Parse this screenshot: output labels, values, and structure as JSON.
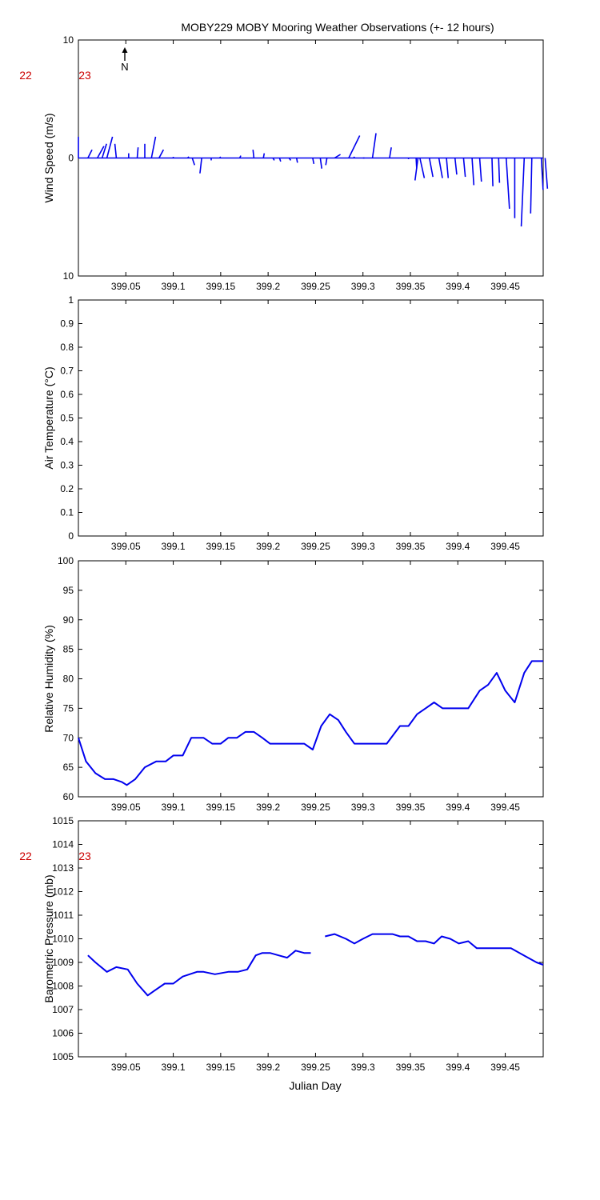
{
  "title": "MOBY229 MOBY Mooring Weather Observations (+- 12 hours)",
  "colors": {
    "series": "#0000ee",
    "day_marker": "#cc0000",
    "axes": "#000000"
  },
  "shared_x": {
    "label": "Julian Day",
    "xlim": [
      399.0,
      399.49
    ],
    "ticks": [
      399.05,
      399.1,
      399.15,
      399.2,
      399.25,
      399.3,
      399.35,
      399.4,
      399.45
    ],
    "tick_labels": [
      "399.05",
      "399.1",
      "399.15",
      "399.2",
      "399.25",
      "399.3",
      "399.35",
      "399.4",
      "399.45"
    ]
  },
  "north_label": "N",
  "day_markers": {
    "labels": [
      "22",
      "23"
    ]
  },
  "chart_data": [
    {
      "type": "quiver",
      "ylabel": "Wind Speed (m/s)",
      "ylim": [
        -10,
        10
      ],
      "yticks": [
        -10,
        0,
        10
      ],
      "ytick_labels": [
        "10",
        "0",
        "10"
      ],
      "u_scale": 0.00313,
      "vectors": [
        {
          "x": 399.0,
          "u": 0.0,
          "v": 1.8
        },
        {
          "x": 399.01,
          "u": 1.4,
          "v": 0.7
        },
        {
          "x": 399.02,
          "u": 2.2,
          "v": 1.0
        },
        {
          "x": 399.025,
          "u": 1.5,
          "v": 1.2
        },
        {
          "x": 399.03,
          "u": 1.9,
          "v": 1.8
        },
        {
          "x": 399.04,
          "u": -0.5,
          "v": 1.2
        },
        {
          "x": 399.053,
          "u": 0.0,
          "v": 0.4
        },
        {
          "x": 399.062,
          "u": 0.3,
          "v": 0.9
        },
        {
          "x": 399.07,
          "u": 0.0,
          "v": 1.2
        },
        {
          "x": 399.077,
          "u": 1.4,
          "v": 1.8
        },
        {
          "x": 399.085,
          "u": 1.5,
          "v": 0.7
        },
        {
          "x": 399.1,
          "u": 0.0,
          "v": 0.1
        },
        {
          "x": 399.115,
          "u": 0.5,
          "v": 0.1
        },
        {
          "x": 399.12,
          "u": 0.8,
          "v": -0.6
        },
        {
          "x": 399.13,
          "u": -0.6,
          "v": -1.3
        },
        {
          "x": 399.14,
          "u": 0.0,
          "v": -0.2
        },
        {
          "x": 399.15,
          "u": -0.3,
          "v": 0.1
        },
        {
          "x": 399.17,
          "u": 0.4,
          "v": 0.2
        },
        {
          "x": 399.185,
          "u": -0.3,
          "v": 0.7
        },
        {
          "x": 399.195,
          "u": 0.3,
          "v": 0.4
        },
        {
          "x": 399.205,
          "u": 0.5,
          "v": -0.2
        },
        {
          "x": 399.212,
          "u": 0.4,
          "v": -0.3
        },
        {
          "x": 399.222,
          "u": 0.6,
          "v": -0.2
        },
        {
          "x": 399.23,
          "u": 0.3,
          "v": -0.4
        },
        {
          "x": 399.247,
          "u": 0.4,
          "v": -0.5
        },
        {
          "x": 399.255,
          "u": 0.5,
          "v": -0.9
        },
        {
          "x": 399.262,
          "u": -0.4,
          "v": -0.6
        },
        {
          "x": 399.27,
          "u": 2.0,
          "v": 0.3
        },
        {
          "x": 399.285,
          "u": 3.7,
          "v": 1.9
        },
        {
          "x": 399.29,
          "u": 0.4,
          "v": 0.1
        },
        {
          "x": 399.3,
          "u": 0.5,
          "v": 0.0
        },
        {
          "x": 399.31,
          "u": 1.2,
          "v": 2.1
        },
        {
          "x": 399.328,
          "u": 0.6,
          "v": 0.9
        },
        {
          "x": 399.348,
          "u": 0.0,
          "v": -0.1
        },
        {
          "x": 399.356,
          "u": 0.2,
          "v": -0.9
        },
        {
          "x": 399.358,
          "u": -1.0,
          "v": -1.9
        },
        {
          "x": 399.36,
          "u": 1.5,
          "v": -1.7
        },
        {
          "x": 399.37,
          "u": 1.2,
          "v": -1.6
        },
        {
          "x": 399.38,
          "u": 1.2,
          "v": -1.7
        },
        {
          "x": 399.388,
          "u": 0.6,
          "v": -1.7
        },
        {
          "x": 399.397,
          "u": 0.6,
          "v": -1.4
        },
        {
          "x": 399.406,
          "u": 0.6,
          "v": -1.6
        },
        {
          "x": 399.415,
          "u": 0.6,
          "v": -2.3
        },
        {
          "x": 399.423,
          "u": 0.6,
          "v": -2.0
        },
        {
          "x": 399.436,
          "u": 0.3,
          "v": -2.4
        },
        {
          "x": 399.443,
          "u": 0.3,
          "v": -2.1
        },
        {
          "x": 399.451,
          "u": 1.1,
          "v": -4.3
        },
        {
          "x": 399.46,
          "u": 0.0,
          "v": -5.1
        },
        {
          "x": 399.47,
          "u": -1.0,
          "v": -5.8
        },
        {
          "x": 399.478,
          "u": -0.4,
          "v": -4.7
        },
        {
          "x": 399.488,
          "u": 0.6,
          "v": -2.7
        },
        {
          "x": 399.492,
          "u": 0.8,
          "v": -2.6
        }
      ]
    },
    {
      "type": "line",
      "ylabel": "Air Temperature (°C)",
      "ylim": [
        0,
        1
      ],
      "yticks": [
        0,
        0.1,
        0.2,
        0.3,
        0.4,
        0.5,
        0.6,
        0.7,
        0.8,
        0.9,
        1
      ],
      "ytick_labels": [
        "0",
        "0.1",
        "0.2",
        "0.3",
        "0.4",
        "0.5",
        "0.6",
        "0.7",
        "0.8",
        "0.9",
        "1"
      ],
      "segments": []
    },
    {
      "type": "line",
      "ylabel": "Relative Humidity (%)",
      "ylim": [
        60,
        100
      ],
      "yticks": [
        60,
        65,
        70,
        75,
        80,
        85,
        90,
        95,
        100
      ],
      "ytick_labels": [
        "60",
        "65",
        "70",
        "75",
        "80",
        "85",
        "90",
        "95",
        "100"
      ],
      "segments": [
        {
          "x": [
            399.0,
            399.008,
            399.018,
            399.028,
            399.037,
            399.046,
            399.051,
            399.06,
            399.07,
            399.082,
            399.092,
            399.1,
            399.11,
            399.119,
            399.125,
            399.132,
            399.141,
            399.15,
            399.158,
            399.167,
            399.176,
            399.185,
            399.194,
            399.202,
            399.211,
            399.22,
            399.229,
            399.238,
            399.247,
            399.256,
            399.265,
            399.274,
            399.282,
            399.291,
            399.3,
            399.309,
            399.319,
            399.325,
            399.339,
            399.348,
            399.357,
            399.366,
            399.375,
            399.384,
            399.393,
            399.403,
            399.411,
            399.423,
            399.432,
            399.441,
            399.45,
            399.46,
            399.47,
            399.478,
            399.49
          ],
          "y": [
            70,
            66,
            64,
            63,
            63,
            62.5,
            62,
            63,
            65,
            66,
            66,
            67,
            67,
            70,
            70,
            70,
            69,
            69,
            70,
            70,
            71,
            71,
            70,
            69,
            69,
            69,
            69,
            69,
            68,
            72,
            74,
            73,
            71,
            69,
            69,
            69,
            69,
            69,
            72,
            72,
            74,
            75,
            76,
            75,
            75,
            75,
            75,
            78,
            79,
            81,
            78,
            76,
            81,
            83,
            83
          ]
        }
      ]
    },
    {
      "type": "line",
      "ylabel": "Barometric Pressure (mb)",
      "ylim": [
        1005,
        1015
      ],
      "yticks": [
        1005,
        1006,
        1007,
        1008,
        1009,
        1010,
        1011,
        1012,
        1013,
        1014,
        1015
      ],
      "ytick_labels": [
        "1005",
        "1006",
        "1007",
        "1008",
        "1009",
        "1010",
        "1011",
        "1012",
        "1013",
        "1014",
        "1015"
      ],
      "segments": [
        {
          "x": [
            399.01,
            399.018,
            399.03,
            399.04,
            399.052,
            399.062,
            399.073,
            399.08,
            399.091,
            399.1,
            399.11,
            399.125,
            399.132,
            399.144,
            399.158,
            399.168,
            399.178,
            399.187,
            399.194,
            399.202,
            399.211,
            399.22,
            399.229,
            399.238,
            399.245
          ],
          "y": [
            1009.3,
            1009.0,
            1008.6,
            1008.8,
            1008.7,
            1008.1,
            1007.6,
            1007.8,
            1008.1,
            1008.1,
            1008.4,
            1008.6,
            1008.6,
            1008.5,
            1008.6,
            1008.6,
            1008.7,
            1009.3,
            1009.4,
            1009.4,
            1009.3,
            1009.2,
            1009.5,
            1009.4,
            1009.4
          ]
        },
        {
          "x": [
            399.26,
            399.27,
            399.282,
            399.291,
            399.3,
            399.31,
            399.319,
            399.331,
            399.339,
            399.348,
            399.357,
            399.366,
            399.375,
            399.383,
            399.392,
            399.401,
            399.411,
            399.42,
            399.429,
            399.438,
            399.447,
            399.456,
            399.465,
            399.474,
            399.483,
            399.49
          ],
          "y": [
            1010.1,
            1010.2,
            1010.0,
            1009.8,
            1010.0,
            1010.2,
            1010.2,
            1010.2,
            1010.1,
            1010.1,
            1009.9,
            1009.9,
            1009.8,
            1010.1,
            1010.0,
            1009.8,
            1009.9,
            1009.6,
            1009.6,
            1009.6,
            1009.6,
            1009.6,
            1009.4,
            1009.2,
            1009.0,
            1008.9
          ]
        }
      ]
    }
  ]
}
